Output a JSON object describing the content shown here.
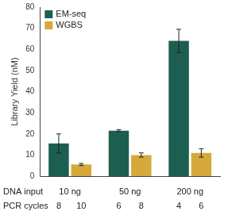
{
  "chart_data": {
    "type": "bar",
    "y_label": "Library Yield (nM)",
    "input_label": "DNA input",
    "cycles_label": "PCR cycles",
    "categories": [
      "10 ng",
      "50 ng",
      "200 ng"
    ],
    "series": [
      {
        "name": "EM-seq",
        "color": "#1c5f50",
        "values": [
          15.5,
          21.5,
          64
        ],
        "errors": [
          4.5,
          0.5,
          5.5
        ],
        "pcr_cycles": [
          8,
          6,
          4
        ]
      },
      {
        "name": "WGBS",
        "color": "#d5a93b",
        "values": [
          5.5,
          10,
          11
        ],
        "errors": [
          0.5,
          1,
          2
        ],
        "pcr_cycles": [
          10,
          8,
          6
        ]
      }
    ],
    "ylim": [
      0,
      80
    ],
    "yticks": [
      0,
      10,
      20,
      30,
      40,
      50,
      60,
      70,
      80
    ],
    "grid": false,
    "legend": "upper left"
  }
}
